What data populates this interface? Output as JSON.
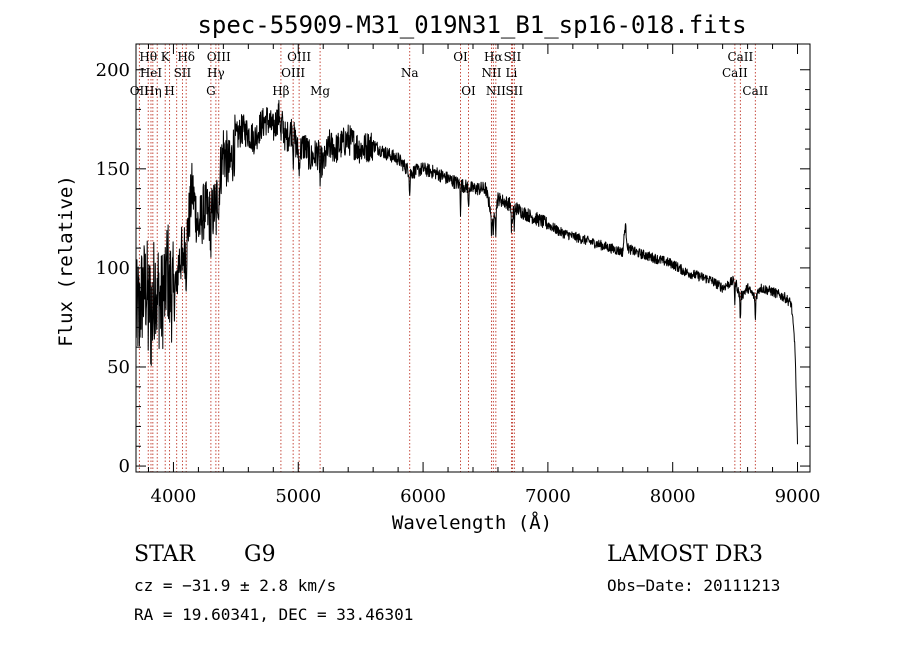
{
  "chart_data": {
    "type": "line",
    "title": "spec-55909-M31_019N31_B1_sp16-018.fits",
    "xlabel": "Wavelength (Å)",
    "ylabel": "Flux (relative)",
    "xlim": [
      3700,
      9100
    ],
    "ylim": [
      -3,
      213
    ],
    "x_ticks": [
      4000,
      5000,
      6000,
      7000,
      8000,
      9000
    ],
    "y_ticks": [
      0,
      50,
      100,
      150,
      200
    ],
    "x_tick_labels": [
      "4000",
      "5000",
      "6000",
      "7000",
      "8000",
      "9000"
    ],
    "y_tick_labels": [
      "0",
      "50",
      "100",
      "150",
      "200"
    ],
    "series": [
      {
        "name": "flux",
        "x": [
          3700,
          3740,
          3780,
          3820,
          3860,
          3900,
          3950,
          4000,
          4050,
          4100,
          4150,
          4200,
          4250,
          4300,
          4350,
          4400,
          4450,
          4500,
          4550,
          4600,
          4650,
          4700,
          4750,
          4800,
          4850,
          4900,
          4950,
          5000,
          5050,
          5100,
          5150,
          5200,
          5250,
          5300,
          5400,
          5500,
          5600,
          5700,
          5800,
          5900,
          6000,
          6100,
          6200,
          6300,
          6400,
          6500,
          6560,
          6600,
          6700,
          6800,
          6900,
          7000,
          7100,
          7200,
          7300,
          7400,
          7500,
          7600,
          7620,
          7640,
          7700,
          7800,
          7900,
          8000,
          8100,
          8200,
          8300,
          8400,
          8500,
          8540,
          8600,
          8660,
          8700,
          8800,
          8900,
          8950,
          8980,
          9000
        ],
        "y": [
          75,
          85,
          90,
          80,
          95,
          80,
          100,
          85,
          105,
          110,
          140,
          120,
          130,
          125,
          135,
          160,
          150,
          165,
          170,
          168,
          165,
          172,
          175,
          170,
          178,
          165,
          170,
          158,
          162,
          155,
          158,
          152,
          162,
          160,
          165,
          160,
          162,
          158,
          155,
          148,
          150,
          148,
          145,
          142,
          140,
          140,
          125,
          135,
          132,
          128,
          125,
          122,
          118,
          116,
          114,
          112,
          110,
          108,
          122,
          110,
          108,
          106,
          104,
          102,
          98,
          96,
          94,
          90,
          94,
          85,
          90,
          85,
          90,
          88,
          85,
          82,
          60,
          10
        ]
      }
    ],
    "line_markers": [
      {
        "wl": 3727,
        "label": "OII",
        "row": 2
      },
      {
        "wl": 3798,
        "label": "Hθ",
        "row": 0
      },
      {
        "wl": 3820,
        "label": "HeI",
        "row": 1
      },
      {
        "wl": 3835,
        "label": "Hη",
        "row": 2
      },
      {
        "wl": 3870,
        "label": "",
        "row": 1
      },
      {
        "wl": 3934,
        "label": "K",
        "row": 0
      },
      {
        "wl": 3969,
        "label": "H",
        "row": 2
      },
      {
        "wl": 4026,
        "label": "",
        "row": 0
      },
      {
        "wl": 4072,
        "label": "SII",
        "row": 1
      },
      {
        "wl": 4102,
        "label": "Hδ",
        "row": 0
      },
      {
        "wl": 4300,
        "label": "G",
        "row": 2
      },
      {
        "wl": 4340,
        "label": "Hγ",
        "row": 1
      },
      {
        "wl": 4363,
        "label": "OIII",
        "row": 0
      },
      {
        "wl": 4861,
        "label": "Hβ",
        "row": 2
      },
      {
        "wl": 4959,
        "label": "OIII",
        "row": 1
      },
      {
        "wl": 5007,
        "label": "OIII",
        "row": 0
      },
      {
        "wl": 5175,
        "label": "Mg",
        "row": 2
      },
      {
        "wl": 5893,
        "label": "Na",
        "row": 1
      },
      {
        "wl": 6300,
        "label": "OI",
        "row": 0
      },
      {
        "wl": 6364,
        "label": "OI",
        "row": 2
      },
      {
        "wl": 6548,
        "label": "NII",
        "row": 1
      },
      {
        "wl": 6563,
        "label": "Hα",
        "row": 0
      },
      {
        "wl": 6583,
        "label": "NII",
        "row": 2
      },
      {
        "wl": 6708,
        "label": "Li",
        "row": 1
      },
      {
        "wl": 6716,
        "label": "SII",
        "row": 0
      },
      {
        "wl": 6731,
        "label": "SII",
        "row": 2
      },
      {
        "wl": 8498,
        "label": "CaII",
        "row": 1
      },
      {
        "wl": 8542,
        "label": "CaII",
        "row": 0
      },
      {
        "wl": 8662,
        "label": "CaII",
        "row": 2
      }
    ]
  },
  "info": {
    "class_label": "STAR",
    "subclass_label": "G9",
    "survey_label": "LAMOST DR3",
    "cz_text": "cz = −31.9 ± 2.8 km/s",
    "obsdate_text": "Obs−Date: 20111213",
    "radec_text": "RA =  19.60341, DEC =  33.46301"
  },
  "colors": {
    "spectrum": "#000000",
    "line_marker": "#c0392b",
    "axis": "#000000"
  }
}
